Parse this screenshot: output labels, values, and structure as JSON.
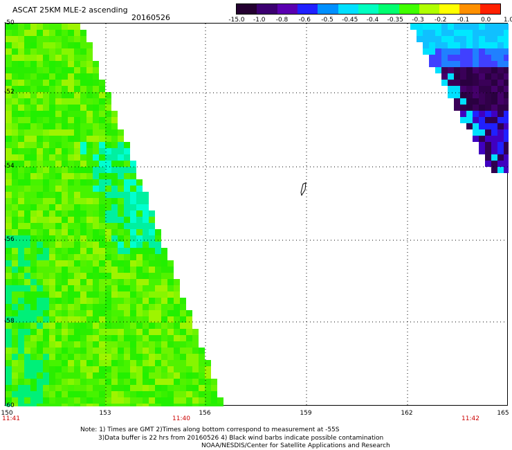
{
  "header": {
    "title": "ASCAT 25KM MLE-2 ascending",
    "date": "20160526"
  },
  "colorbar": {
    "labels": [
      "-15.0",
      "-1.0",
      "-0.8",
      "-0.6",
      "-0.5",
      "-0.45",
      "-0.4",
      "-0.35",
      "-0.3",
      "-0.2",
      "-0.1",
      "0.0",
      "1.0"
    ],
    "colors": [
      "#240030",
      "#3c0070",
      "#5a00b0",
      "#2020ff",
      "#0090ff",
      "#00e0ff",
      "#00ffc0",
      "#00ff70",
      "#40ff00",
      "#b0ff00",
      "#ffff00",
      "#ff9000",
      "#ff2000"
    ]
  },
  "map": {
    "lat_labels": [
      "-50",
      "-52",
      "-54",
      "-56",
      "-58",
      "-60"
    ],
    "lon_labels": [
      "150",
      "153",
      "156",
      "159",
      "162",
      "165"
    ],
    "time_labels": [
      "11:41",
      "11:40",
      "11:42"
    ],
    "time_color": "#cc0000",
    "land_symbol": "lake-outline"
  },
  "notes": {
    "line1": "Note: 1) Times are GMT 2)Times along bottom correspond to measurement at -55S",
    "line2": "3)Data buffer is 22 hrs from 20160526 4) Black wind barbs indicate possible contamination",
    "line3": "NOAA/NESDIS/Center for Satellite Applications and Research"
  }
}
